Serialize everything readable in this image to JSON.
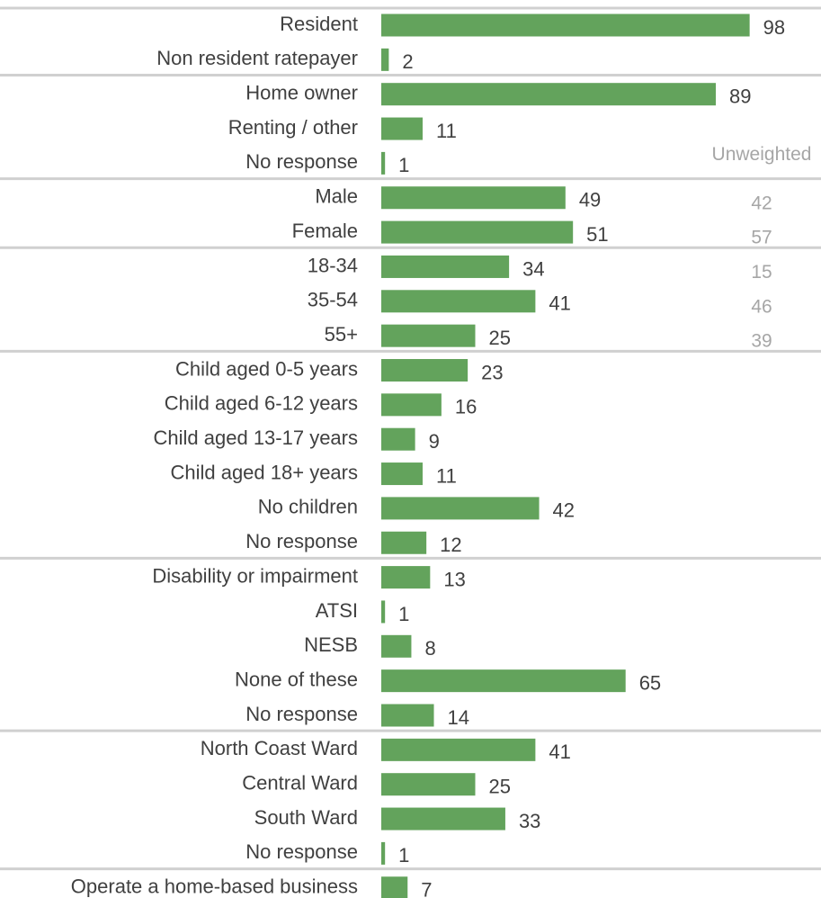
{
  "chart_data": {
    "type": "bar",
    "orientation": "horizontal",
    "bar_color": "#63a35c",
    "separator_color": "#d0d0d0",
    "text_color": "#404040",
    "unweighted_color": "#a6a6a6",
    "xlim": [
      0,
      100
    ],
    "grid": false,
    "unweighted_header": "Unweighted",
    "groups": [
      {
        "items": [
          {
            "label": "Resident",
            "value": 98
          },
          {
            "label": "Non resident ratepayer",
            "value": 2
          }
        ]
      },
      {
        "items": [
          {
            "label": "Home owner",
            "value": 89
          },
          {
            "label": "Renting / other",
            "value": 11
          },
          {
            "label": "No response",
            "value": 1
          }
        ]
      },
      {
        "items": [
          {
            "label": "Male",
            "value": 49,
            "unweighted": 42
          },
          {
            "label": "Female",
            "value": 51,
            "unweighted": 57
          }
        ]
      },
      {
        "items": [
          {
            "label": "18-34",
            "value": 34,
            "unweighted": 15
          },
          {
            "label": "35-54",
            "value": 41,
            "unweighted": 46
          },
          {
            "label": "55+",
            "value": 25,
            "unweighted": 39
          }
        ]
      },
      {
        "items": [
          {
            "label": "Child aged 0-5 years",
            "value": 23
          },
          {
            "label": "Child aged 6-12 years",
            "value": 16
          },
          {
            "label": "Child aged 13-17 years",
            "value": 9
          },
          {
            "label": "Child aged 18+ years",
            "value": 11
          },
          {
            "label": "No children",
            "value": 42
          },
          {
            "label": "No response",
            "value": 12
          }
        ]
      },
      {
        "items": [
          {
            "label": "Disability or impairment",
            "value": 13
          },
          {
            "label": "ATSI",
            "value": 1
          },
          {
            "label": "NESB",
            "value": 8
          },
          {
            "label": "None of these",
            "value": 65
          },
          {
            "label": "No response",
            "value": 14
          }
        ]
      },
      {
        "items": [
          {
            "label": "North Coast Ward",
            "value": 41
          },
          {
            "label": "Central Ward",
            "value": 25
          },
          {
            "label": "South Ward",
            "value": 33
          },
          {
            "label": "No response",
            "value": 1
          }
        ]
      },
      {
        "items": [
          {
            "label": "Operate a home-based business",
            "value": 7
          }
        ]
      }
    ]
  }
}
